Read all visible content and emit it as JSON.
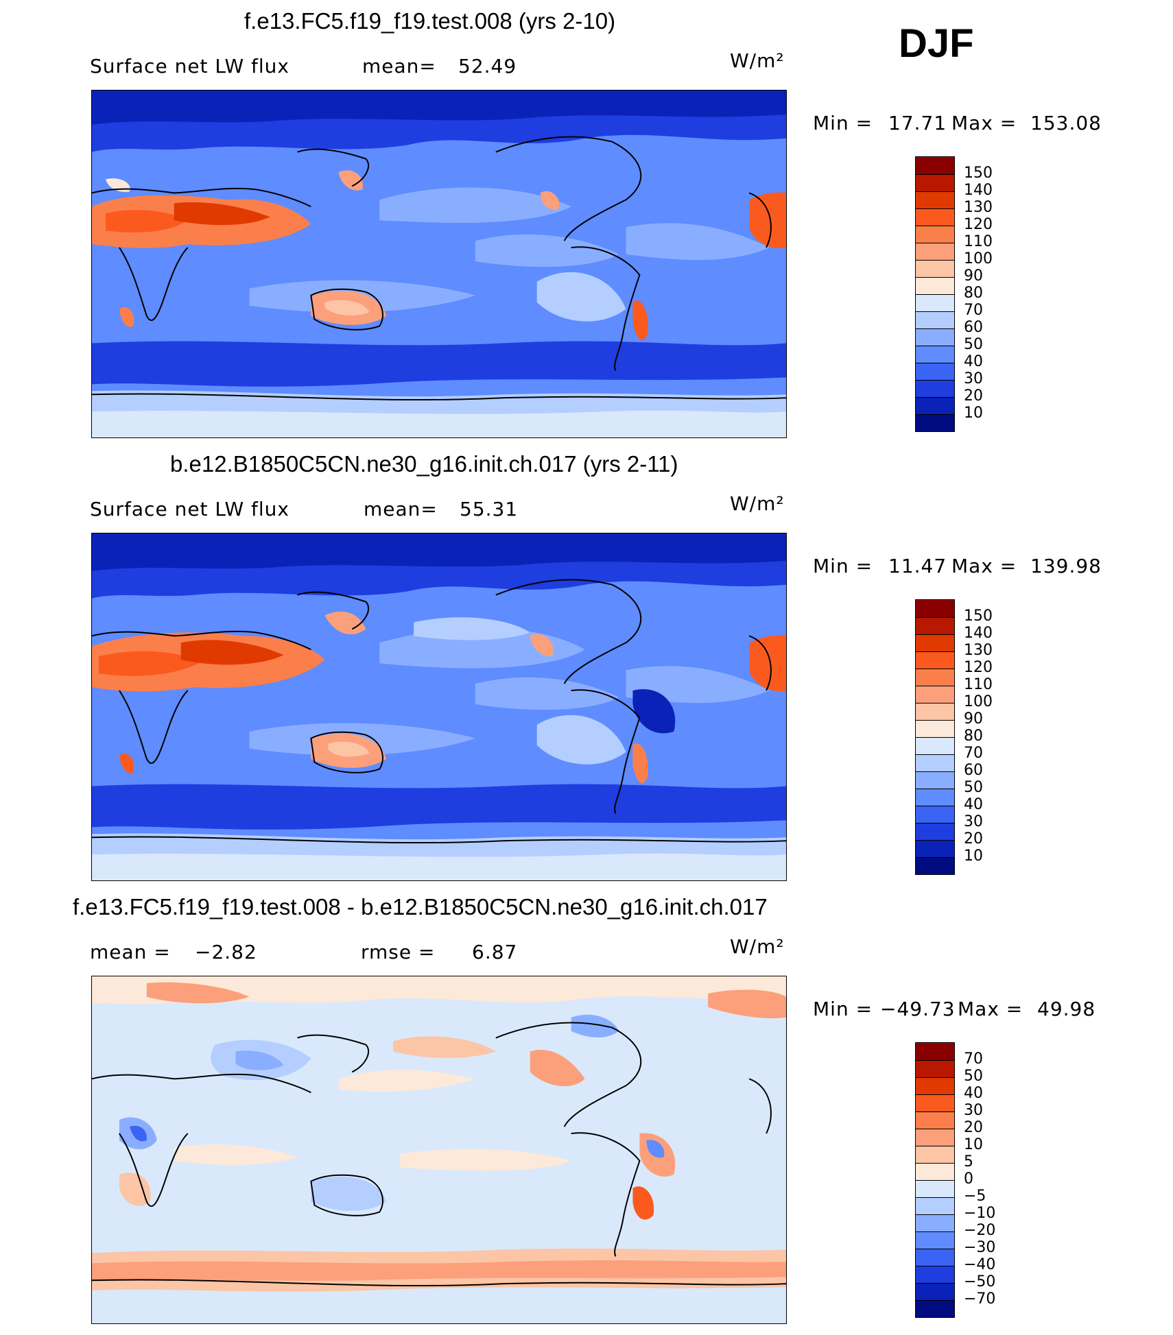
{
  "season": "DJF",
  "units_label": "W/m²",
  "panels": [
    {
      "title": "f.e13.FC5.f19_f19.test.008 (yrs 2-10)",
      "var_label": "Surface net LW flux",
      "stat1_label": "mean=",
      "stat1_value": "52.49",
      "stat2_label": "",
      "stat2_value": "",
      "min_text": "Min =",
      "min_value": "17.71",
      "max_text": "Max =",
      "max_value": "153.08",
      "levels": [
        "150",
        "140",
        "130",
        "120",
        "110",
        "100",
        "90",
        "80",
        "70",
        "60",
        "50",
        "40",
        "30",
        "20",
        "10"
      ],
      "colors": [
        "#8a0000",
        "#b81800",
        "#e03a00",
        "#fb5a1e",
        "#fb7f4a",
        "#fba07a",
        "#fcc5a6",
        "#fde9d9",
        "#d9e9fb",
        "#b4ceff",
        "#8aaeff",
        "#5f8cff",
        "#3a64f4",
        "#1e3ee0",
        "#0a22b8",
        "#000c80"
      ]
    },
    {
      "title": "b.e12.B1850C5CN.ne30_g16.init.ch.017 (yrs 2-11)",
      "var_label": "Surface net LW flux",
      "stat1_label": "mean=",
      "stat1_value": "55.31",
      "stat2_label": "",
      "stat2_value": "",
      "min_text": "Min =",
      "min_value": "11.47",
      "max_text": "Max =",
      "max_value": "139.98",
      "levels": [
        "150",
        "140",
        "130",
        "120",
        "110",
        "100",
        "90",
        "80",
        "70",
        "60",
        "50",
        "40",
        "30",
        "20",
        "10"
      ],
      "colors": [
        "#8a0000",
        "#b81800",
        "#e03a00",
        "#fb5a1e",
        "#fb7f4a",
        "#fba07a",
        "#fcc5a6",
        "#fde9d9",
        "#d9e9fb",
        "#b4ceff",
        "#8aaeff",
        "#5f8cff",
        "#3a64f4",
        "#1e3ee0",
        "#0a22b8",
        "#000c80"
      ]
    },
    {
      "title": "f.e13.FC5.f19_f19.test.008 - b.e12.B1850C5CN.ne30_g16.init.ch.017",
      "var_label": "",
      "stat1_label": "mean =",
      "stat1_value": "−2.82",
      "stat2_label": "rmse =",
      "stat2_value": "6.87",
      "min_text": "Min =",
      "min_value": "−49.73",
      "max_text": "Max =",
      "max_value": "49.98",
      "levels": [
        "70",
        "50",
        "40",
        "30",
        "20",
        "10",
        "5",
        "0",
        "−5",
        "−10",
        "−20",
        "−30",
        "−40",
        "−50",
        "−70"
      ],
      "colors": [
        "#8a0000",
        "#b81800",
        "#e03a00",
        "#fb5a1e",
        "#fb7f4a",
        "#fba07a",
        "#fcc5a6",
        "#fde9d9",
        "#d9e9fb",
        "#b4ceff",
        "#8aaeff",
        "#5f8cff",
        "#3a64f4",
        "#1e3ee0",
        "#0a22b8",
        "#000c80"
      ]
    }
  ]
}
